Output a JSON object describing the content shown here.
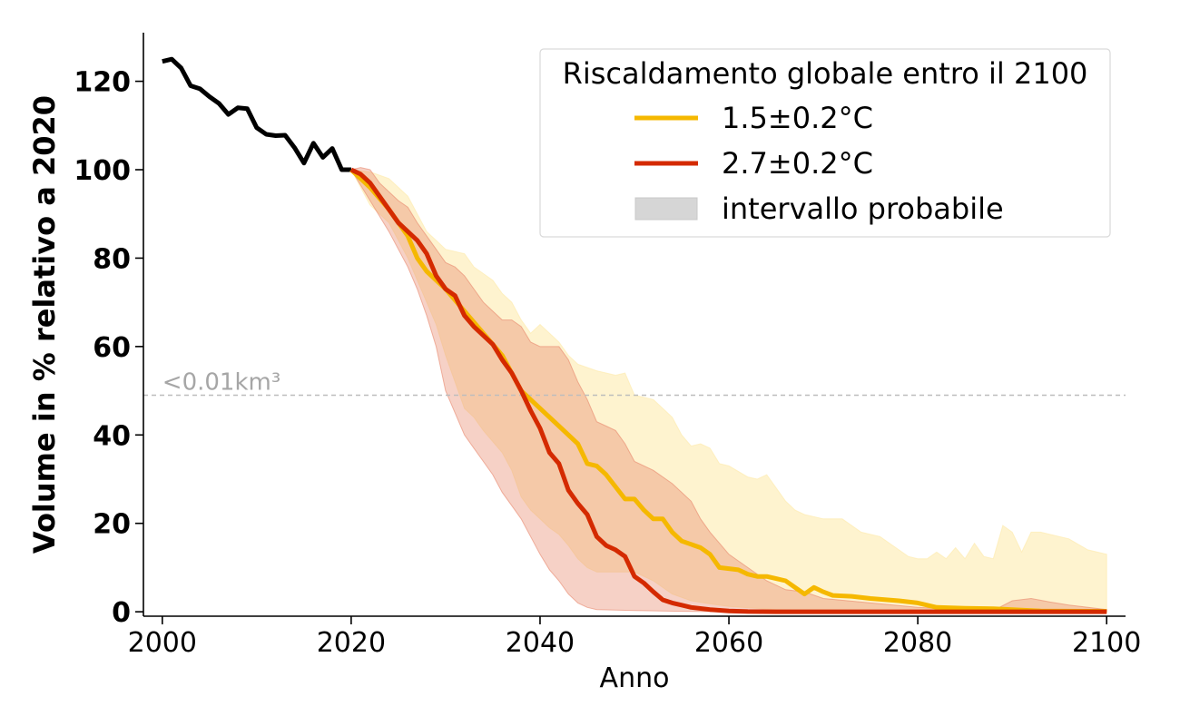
{
  "chart_data": {
    "type": "line",
    "xlabel": "Anno",
    "ylabel": "Volume in % relativo a 2020",
    "xlim": [
      1998,
      2102
    ],
    "ylim": [
      -1,
      131
    ],
    "xticks": [
      2000,
      2020,
      2040,
      2060,
      2080,
      2100
    ],
    "yticks": [
      0,
      20,
      40,
      60,
      80,
      100,
      120
    ],
    "grid": false,
    "legend": {
      "title": "Riscaldamento globale entro il 2100",
      "position": "top-right",
      "range_label": "intervallo probabile"
    },
    "reference_line": {
      "y": 49,
      "label": "<0.01km³",
      "style": "dashed",
      "color": "#bdbdbd"
    },
    "observed": {
      "color": "#000000",
      "points": [
        [
          2000,
          124.5
        ],
        [
          2001,
          125
        ],
        [
          2002,
          123
        ],
        [
          2003,
          119
        ],
        [
          2004,
          118.3
        ],
        [
          2005,
          116.5
        ],
        [
          2006,
          115
        ],
        [
          2007,
          112.5
        ],
        [
          2008,
          114
        ],
        [
          2009,
          113.8
        ],
        [
          2010,
          109.5
        ],
        [
          2011,
          108
        ],
        [
          2012,
          107.7
        ],
        [
          2013,
          107.8
        ],
        [
          2014,
          105
        ],
        [
          2015,
          101.5
        ],
        [
          2016,
          106
        ],
        [
          2017,
          102.8
        ],
        [
          2018,
          104.8
        ],
        [
          2019,
          100
        ],
        [
          2020,
          100
        ]
      ]
    },
    "series": [
      {
        "name": "1.5±0.2°C",
        "color": "#f5b800",
        "band_color": "#fde9a8",
        "band_opacity": 0.55,
        "points": [
          [
            2020,
            100
          ],
          [
            2022,
            96
          ],
          [
            2024,
            91
          ],
          [
            2026,
            85
          ],
          [
            2027,
            80
          ],
          [
            2028,
            77
          ],
          [
            2029,
            75
          ],
          [
            2030,
            73
          ],
          [
            2032,
            68
          ],
          [
            2034,
            63
          ],
          [
            2036,
            58
          ],
          [
            2038,
            50
          ],
          [
            2040,
            46
          ],
          [
            2042,
            42
          ],
          [
            2044,
            38
          ],
          [
            2045,
            33.5
          ],
          [
            2046,
            33
          ],
          [
            2047,
            31
          ],
          [
            2049,
            25.5
          ],
          [
            2050,
            25.5
          ],
          [
            2051,
            23
          ],
          [
            2052,
            21
          ],
          [
            2053,
            21
          ],
          [
            2054,
            18
          ],
          [
            2055,
            16
          ],
          [
            2057,
            14.5
          ],
          [
            2058,
            13
          ],
          [
            2059,
            10
          ],
          [
            2061,
            9.5
          ],
          [
            2062,
            8.5
          ],
          [
            2063,
            8
          ],
          [
            2064,
            8
          ],
          [
            2065,
            7.5
          ],
          [
            2066,
            7
          ],
          [
            2067,
            5.5
          ],
          [
            2068,
            4
          ],
          [
            2069,
            5.5
          ],
          [
            2070,
            4.5
          ],
          [
            2071,
            3.7
          ],
          [
            2073,
            3.5
          ],
          [
            2075,
            3
          ],
          [
            2078,
            2.5
          ],
          [
            2080,
            2
          ],
          [
            2082,
            1
          ],
          [
            2085,
            0.8
          ],
          [
            2088,
            0.7
          ],
          [
            2090,
            0.5
          ],
          [
            2093,
            0.2
          ],
          [
            2100,
            0.1
          ]
        ],
        "band_upper": [
          [
            2020,
            100
          ],
          [
            2022,
            99.5
          ],
          [
            2024,
            98
          ],
          [
            2026,
            94
          ],
          [
            2027,
            90
          ],
          [
            2028,
            86
          ],
          [
            2029,
            84
          ],
          [
            2030,
            82
          ],
          [
            2032,
            81
          ],
          [
            2033,
            78
          ],
          [
            2034,
            76.5
          ],
          [
            2035,
            75
          ],
          [
            2036,
            72
          ],
          [
            2037,
            70
          ],
          [
            2038,
            66
          ],
          [
            2039,
            63
          ],
          [
            2040,
            65
          ],
          [
            2041,
            63
          ],
          [
            2042,
            61
          ],
          [
            2043,
            58
          ],
          [
            2044,
            56
          ],
          [
            2046,
            54.5
          ],
          [
            2048,
            53.5
          ],
          [
            2049,
            54
          ],
          [
            2050,
            49
          ],
          [
            2052,
            48
          ],
          [
            2054,
            44
          ],
          [
            2055,
            40
          ],
          [
            2056,
            37.5
          ],
          [
            2057,
            38
          ],
          [
            2058,
            37
          ],
          [
            2059,
            33.5
          ],
          [
            2060,
            33
          ],
          [
            2062,
            30.5
          ],
          [
            2063,
            30
          ],
          [
            2064,
            31
          ],
          [
            2065,
            28
          ],
          [
            2066,
            25
          ],
          [
            2067,
            23
          ],
          [
            2068,
            22
          ],
          [
            2070,
            21
          ],
          [
            2072,
            21
          ],
          [
            2074,
            18
          ],
          [
            2076,
            17
          ],
          [
            2078,
            14
          ],
          [
            2079,
            12.5
          ],
          [
            2080,
            12
          ],
          [
            2081,
            12
          ],
          [
            2082,
            13.5
          ],
          [
            2083,
            12
          ],
          [
            2084,
            14.5
          ],
          [
            2085,
            12
          ],
          [
            2086,
            15.5
          ],
          [
            2087,
            12.5
          ],
          [
            2088,
            12
          ],
          [
            2089,
            19.5
          ],
          [
            2090,
            18
          ],
          [
            2091,
            13.5
          ],
          [
            2092,
            18
          ],
          [
            2093,
            18
          ],
          [
            2094,
            17.5
          ],
          [
            2096,
            16.5
          ],
          [
            2098,
            14
          ],
          [
            2100,
            13
          ]
        ],
        "band_lower": [
          [
            2020,
            100
          ],
          [
            2022,
            92
          ],
          [
            2024,
            88
          ],
          [
            2026,
            80
          ],
          [
            2027,
            75
          ],
          [
            2028,
            70
          ],
          [
            2029,
            65
          ],
          [
            2030,
            58
          ],
          [
            2031,
            52
          ],
          [
            2032,
            46
          ],
          [
            2033,
            44
          ],
          [
            2034,
            41
          ],
          [
            2036,
            36
          ],
          [
            2037,
            32
          ],
          [
            2038,
            26
          ],
          [
            2039,
            23
          ],
          [
            2040,
            21
          ],
          [
            2041,
            19
          ],
          [
            2042,
            17.5
          ],
          [
            2043,
            15
          ],
          [
            2044,
            12
          ],
          [
            2045,
            10
          ],
          [
            2046,
            9
          ],
          [
            2048,
            9
          ],
          [
            2050,
            9
          ],
          [
            2052,
            7
          ],
          [
            2053,
            5.5
          ],
          [
            2054,
            4
          ],
          [
            2056,
            2.5
          ],
          [
            2058,
            1.8
          ],
          [
            2060,
            1.2
          ],
          [
            2065,
            0.5
          ],
          [
            2070,
            0.2
          ],
          [
            2080,
            0
          ],
          [
            2090,
            0
          ],
          [
            2100,
            0
          ]
        ]
      },
      {
        "name": "2.7±0.2°C",
        "color": "#d42a00",
        "band_color": "#e8866a",
        "band_opacity": 0.38,
        "points": [
          [
            2020,
            100
          ],
          [
            2021,
            99
          ],
          [
            2022,
            97
          ],
          [
            2023,
            94
          ],
          [
            2024,
            91
          ],
          [
            2025,
            88
          ],
          [
            2026,
            86
          ],
          [
            2027,
            84
          ],
          [
            2028,
            81
          ],
          [
            2029,
            76
          ],
          [
            2030,
            73
          ],
          [
            2031,
            71.5
          ],
          [
            2032,
            67
          ],
          [
            2033,
            64.5
          ],
          [
            2034,
            62.5
          ],
          [
            2035,
            60.5
          ],
          [
            2036,
            57
          ],
          [
            2037,
            54
          ],
          [
            2038,
            50
          ],
          [
            2039,
            45.5
          ],
          [
            2040,
            41.5
          ],
          [
            2041,
            36
          ],
          [
            2042,
            33.5
          ],
          [
            2043,
            27.5
          ],
          [
            2044,
            24.5
          ],
          [
            2045,
            22
          ],
          [
            2046,
            17
          ],
          [
            2047,
            15
          ],
          [
            2048,
            14
          ],
          [
            2049,
            12.5
          ],
          [
            2050,
            8
          ],
          [
            2051,
            6.5
          ],
          [
            2052,
            4.5
          ],
          [
            2053,
            2.7
          ],
          [
            2054,
            2
          ],
          [
            2055,
            1.5
          ],
          [
            2056,
            1
          ],
          [
            2058,
            0.5
          ],
          [
            2060,
            0.2
          ],
          [
            2062,
            0.05
          ],
          [
            2065,
            0
          ],
          [
            2100,
            0
          ]
        ],
        "band_upper": [
          [
            2020,
            100
          ],
          [
            2021,
            100.5
          ],
          [
            2022,
            100
          ],
          [
            2023,
            97
          ],
          [
            2024,
            95
          ],
          [
            2025,
            93
          ],
          [
            2026,
            91.5
          ],
          [
            2027,
            88
          ],
          [
            2028,
            85
          ],
          [
            2029,
            82
          ],
          [
            2030,
            79
          ],
          [
            2031,
            78
          ],
          [
            2032,
            76
          ],
          [
            2033,
            73
          ],
          [
            2034,
            70
          ],
          [
            2035,
            68
          ],
          [
            2036,
            66
          ],
          [
            2037,
            66
          ],
          [
            2038,
            64.5
          ],
          [
            2039,
            61
          ],
          [
            2040,
            60
          ],
          [
            2041,
            60
          ],
          [
            2042,
            60
          ],
          [
            2043,
            57
          ],
          [
            2044,
            52
          ],
          [
            2045,
            48
          ],
          [
            2046,
            43
          ],
          [
            2047,
            42
          ],
          [
            2048,
            41
          ],
          [
            2049,
            38
          ],
          [
            2050,
            34
          ],
          [
            2052,
            32
          ],
          [
            2054,
            29
          ],
          [
            2056,
            25
          ],
          [
            2057,
            21
          ],
          [
            2058,
            18
          ],
          [
            2059,
            15.5
          ],
          [
            2060,
            13
          ],
          [
            2062,
            10
          ],
          [
            2064,
            7
          ],
          [
            2066,
            5
          ],
          [
            2068,
            4.5
          ],
          [
            2070,
            3
          ],
          [
            2075,
            2
          ],
          [
            2080,
            1
          ],
          [
            2085,
            0.5
          ],
          [
            2088,
            0.3
          ],
          [
            2090,
            2.5
          ],
          [
            2092,
            3
          ],
          [
            2094,
            2.2
          ],
          [
            2096,
            1.5
          ],
          [
            2100,
            0.5
          ]
        ],
        "band_lower": [
          [
            2020,
            100
          ],
          [
            2022,
            93
          ],
          [
            2024,
            86
          ],
          [
            2026,
            78
          ],
          [
            2027,
            73
          ],
          [
            2028,
            67
          ],
          [
            2029,
            60
          ],
          [
            2030,
            50
          ],
          [
            2031,
            45
          ],
          [
            2032,
            40
          ],
          [
            2033,
            37
          ],
          [
            2034,
            34
          ],
          [
            2035,
            31
          ],
          [
            2036,
            27
          ],
          [
            2037,
            24
          ],
          [
            2038,
            21
          ],
          [
            2039,
            17
          ],
          [
            2040,
            13
          ],
          [
            2041,
            9.5
          ],
          [
            2042,
            7
          ],
          [
            2043,
            4
          ],
          [
            2044,
            2
          ],
          [
            2045,
            1
          ],
          [
            2046,
            0.5
          ],
          [
            2050,
            0.3
          ],
          [
            2055,
            0.1
          ],
          [
            2060,
            0
          ],
          [
            2100,
            0
          ]
        ]
      }
    ]
  }
}
